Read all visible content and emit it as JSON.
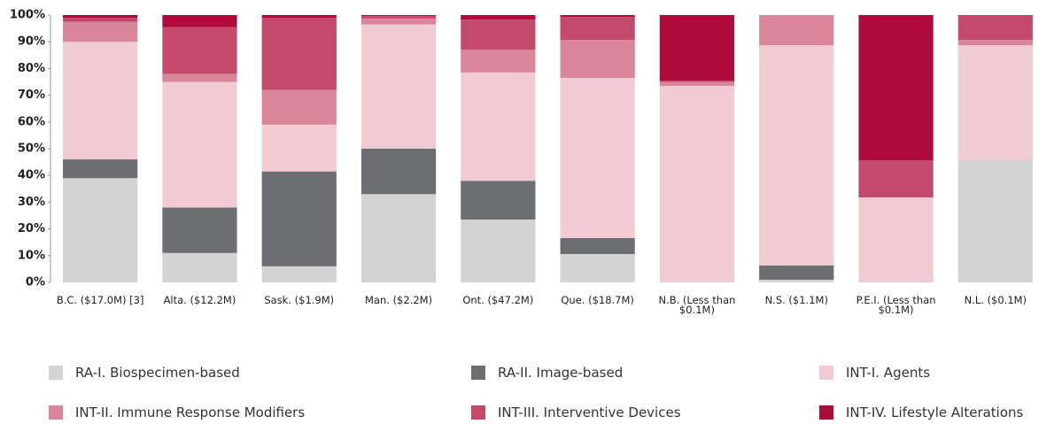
{
  "chart_data": {
    "type": "stacked_bar",
    "categories": [
      "B.C. ($17.0M) [3]",
      "Alta. ($12.2M)",
      "Sask. ($1.9M)",
      "Man. ($2.2M)",
      "Ont. ($47.2M)",
      "Que. ($18.7M)",
      "N.B. (Less than $0.1M)",
      "N.S. ($1.1M)",
      "P.E.I. (Less than $0.1M)",
      "N.L. ($0.1M)"
    ],
    "series": [
      {
        "name": "RA-I. Biospecimen-based",
        "color": "#d3d3d3",
        "values": [
          39,
          11,
          6,
          33,
          23.5,
          10.6,
          0,
          1,
          0,
          45.7
        ]
      },
      {
        "name": "RA-II. Image-based",
        "color": "#6d6e71",
        "values": [
          7,
          17,
          35.5,
          17,
          14.5,
          6,
          0,
          5.3,
          0,
          0
        ]
      },
      {
        "name": "INT-I. Agents",
        "color": "#f0cbd4",
        "values": [
          44,
          47,
          17.5,
          46.5,
          40.5,
          59.9,
          73.5,
          82.4,
          31.8,
          43
        ]
      },
      {
        "name": "INT-II. Immune Response Modifiers",
        "color": "#d9869b",
        "values": [
          7.5,
          3,
          13,
          2.2,
          8.5,
          14.2,
          1.5,
          11.3,
          0,
          2
        ]
      },
      {
        "name": "INT-III. Interventive Devices",
        "color": "#c44a6c",
        "values": [
          1.5,
          17.5,
          27,
          1,
          11.3,
          8.6,
          0.5,
          0,
          13.9,
          9.3
        ]
      },
      {
        "name": "INT-IV. Lifestyle Alterations",
        "color": "#ae0a3a",
        "values": [
          1,
          4.5,
          1,
          0.3,
          1.7,
          0.7,
          24.5,
          0,
          54.3,
          0
        ]
      }
    ],
    "ylim": [
      0,
      100
    ],
    "yticks": [
      {
        "value": 0,
        "label": "0%"
      },
      {
        "value": 10,
        "label": "10%"
      },
      {
        "value": 20,
        "label": "20%"
      },
      {
        "value": 30,
        "label": "30%"
      },
      {
        "value": 40,
        "label": "40%"
      },
      {
        "value": 50,
        "label": "50%"
      },
      {
        "value": 60,
        "label": "60%"
      },
      {
        "value": 70,
        "label": "70%"
      },
      {
        "value": 80,
        "label": "80%"
      },
      {
        "value": 90,
        "label": "90%"
      },
      {
        "value": 100,
        "label": "100%"
      }
    ]
  }
}
